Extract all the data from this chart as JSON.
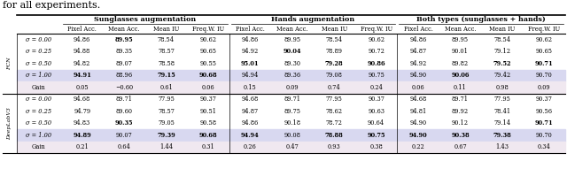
{
  "title": "for all experiments.",
  "col_groups": [
    {
      "label": "Sunglasses augmentation",
      "span": [
        0,
        4
      ]
    },
    {
      "label": "Hands augmentation",
      "span": [
        4,
        8
      ]
    },
    {
      "label": "Both types (sunglasses + hands)",
      "span": [
        8,
        12
      ]
    }
  ],
  "sub_cols": [
    "Pixel Acc.",
    "Mean Acc.",
    "Mean IU",
    "Freq.W. IU",
    "Pixel Acc.",
    "Mean Acc.",
    "Mean IU",
    "Freq.W. IU",
    "Pixel Acc.",
    "Mean Acc.",
    "Mean IU",
    "Freq.W. IU"
  ],
  "sections": [
    {
      "model": "FCN",
      "rows": [
        {
          "label": "σ = 0.00",
          "vals": [
            "94.86",
            "89.95",
            "78.54",
            "90.62",
            "94.86",
            "89.95",
            "78.54",
            "90.62",
            "94.86",
            "89.95",
            "78.54",
            "90.62"
          ],
          "bold": [
            0,
            1,
            0,
            0,
            0,
            0,
            0,
            0,
            0,
            0,
            0,
            0
          ]
        },
        {
          "label": "σ = 0.25",
          "vals": [
            "94.88",
            "89.35",
            "78.57",
            "90.65",
            "94.92",
            "90.04",
            "78.89",
            "90.72",
            "94.87",
            "90.01",
            "79.12",
            "90.65"
          ],
          "bold": [
            0,
            0,
            0,
            0,
            0,
            1,
            0,
            0,
            0,
            0,
            0,
            0
          ]
        },
        {
          "label": "σ = 0.50",
          "vals": [
            "94.82",
            "89.07",
            "78.58",
            "90.55",
            "95.01",
            "89.30",
            "79.28",
            "90.86",
            "94.92",
            "89.82",
            "79.52",
            "90.71"
          ],
          "bold": [
            0,
            0,
            0,
            0,
            1,
            0,
            1,
            1,
            0,
            0,
            1,
            1
          ]
        },
        {
          "label": "σ = 1.00",
          "vals": [
            "94.91",
            "88.96",
            "79.15",
            "90.68",
            "94.94",
            "89.36",
            "79.08",
            "90.75",
            "94.90",
            "90.06",
            "79.42",
            "90.70"
          ],
          "bold": [
            1,
            0,
            1,
            1,
            0,
            0,
            0,
            0,
            0,
            1,
            0,
            0
          ]
        }
      ],
      "gain": {
        "label": "Gain",
        "vals": [
          "0.05",
          "−0.60",
          "0.61",
          "0.06",
          "0.15",
          "0.09",
          "0.74",
          "0.24",
          "0.06",
          "0.11",
          "0.98",
          "0.09"
        ]
      }
    },
    {
      "model": "DeepLabV3",
      "rows": [
        {
          "label": "σ = 0.00",
          "vals": [
            "94.68",
            "89.71",
            "77.95",
            "90.37",
            "94.68",
            "89.71",
            "77.95",
            "90.37",
            "94.68",
            "89.71",
            "77.95",
            "90.37"
          ],
          "bold": [
            0,
            0,
            0,
            0,
            0,
            0,
            0,
            0,
            0,
            0,
            0,
            0
          ]
        },
        {
          "label": "σ = 0.25",
          "vals": [
            "94.79",
            "89.60",
            "78.57",
            "90.51",
            "94.87",
            "89.75",
            "78.62",
            "90.63",
            "94.81",
            "89.92",
            "78.41",
            "90.56"
          ],
          "bold": [
            0,
            0,
            0,
            0,
            0,
            0,
            0,
            0,
            0,
            0,
            0,
            0
          ]
        },
        {
          "label": "σ = 0.50",
          "vals": [
            "94.83",
            "90.35",
            "79.05",
            "90.58",
            "94.86",
            "90.18",
            "78.72",
            "90.64",
            "94.90",
            "90.12",
            "79.14",
            "90.71"
          ],
          "bold": [
            0,
            1,
            0,
            0,
            0,
            0,
            0,
            0,
            0,
            0,
            0,
            1
          ]
        },
        {
          "label": "σ = 1.00",
          "vals": [
            "94.89",
            "90.07",
            "79.39",
            "90.68",
            "94.94",
            "90.08",
            "78.88",
            "90.75",
            "94.90",
            "90.38",
            "79.38",
            "90.70"
          ],
          "bold": [
            1,
            0,
            1,
            1,
            1,
            0,
            1,
            1,
            1,
            1,
            1,
            0
          ]
        }
      ],
      "gain": {
        "label": "Gain",
        "vals": [
          "0.21",
          "0.64",
          "1.44",
          "0.31",
          "0.26",
          "0.47",
          "0.93",
          "0.38",
          "0.22",
          "0.67",
          "1.43",
          "0.34"
        ]
      }
    }
  ],
  "highlight_row_color": "#d8d8f0",
  "gain_row_color": "#f0e8f0",
  "font_size_title": 8,
  "font_size_header": 5.8,
  "font_size_subheader": 4.8,
  "font_size_data": 4.8
}
